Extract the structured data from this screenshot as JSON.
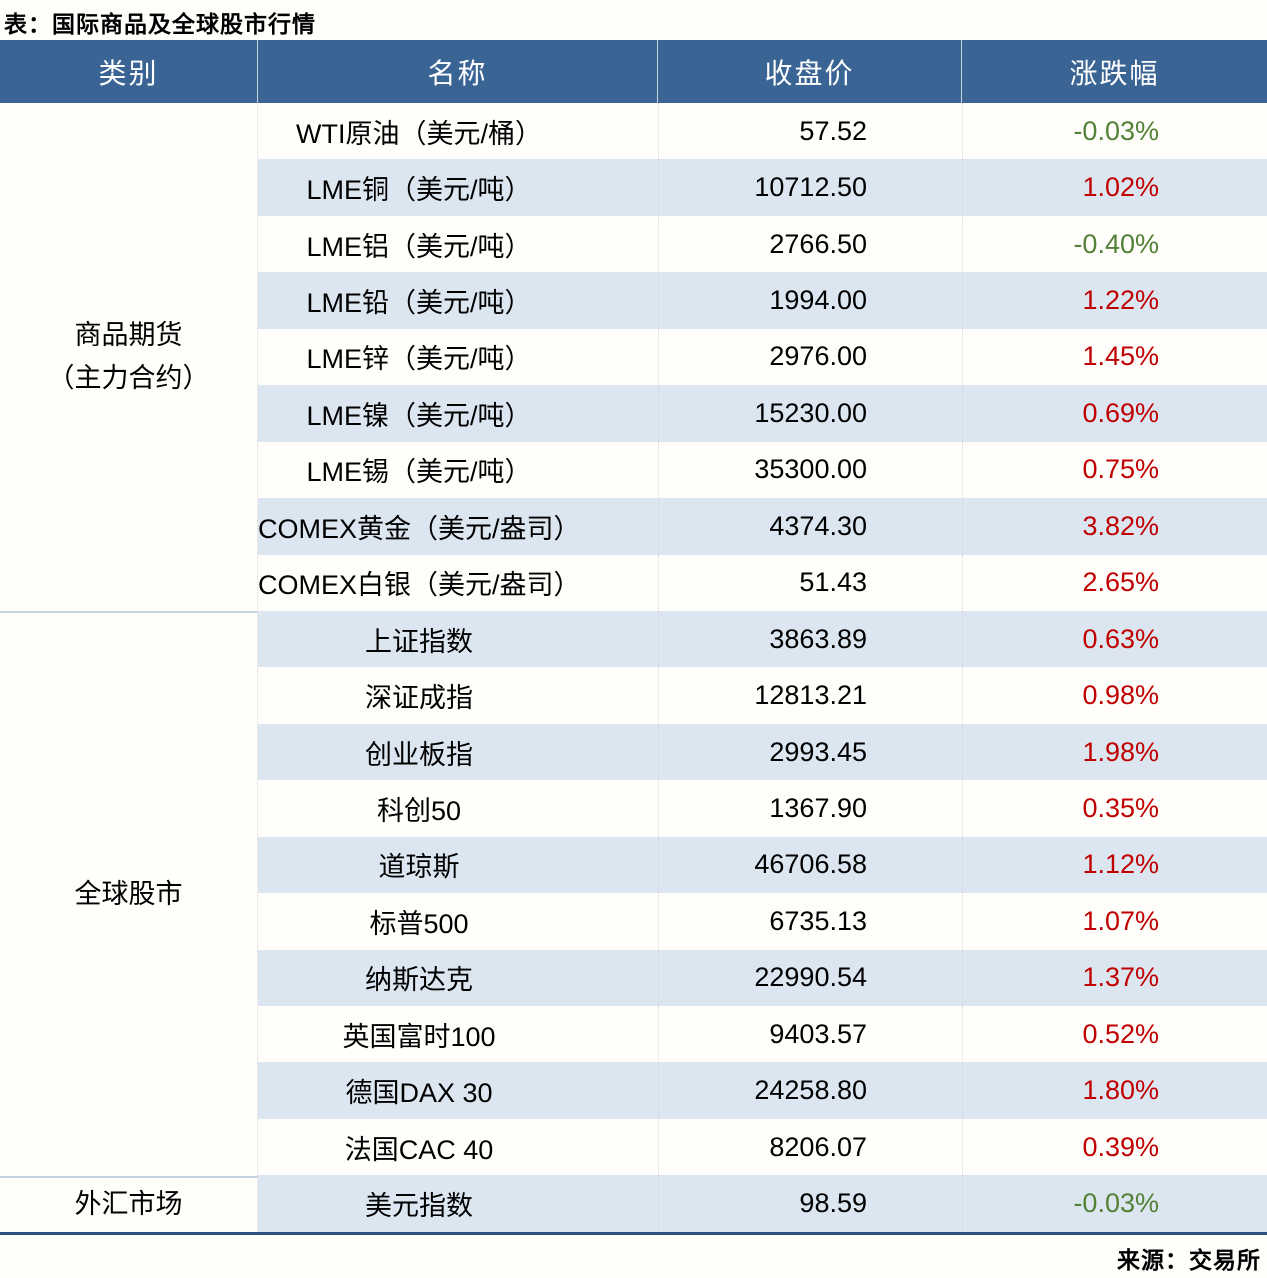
{
  "title": "表：国际商品及全球股市行情",
  "source": "来源：交易所",
  "columns": {
    "category": "类别",
    "name": "名称",
    "close": "收盘价",
    "change": "涨跌幅"
  },
  "colors": {
    "header_bg": "#3A6494",
    "stripe_bg": "#DCE6F1",
    "positive": "#C00000",
    "negative": "#538135",
    "bottom_border": "#2D527E",
    "section_divider": "#C5D3E2"
  },
  "sections": [
    {
      "category_lines": [
        "商品期货",
        "（主力合约）"
      ],
      "rows": [
        {
          "name": "WTI原油（美元/桶）",
          "close": "57.52",
          "change": "-0.03%"
        },
        {
          "name": "LME铜（美元/吨）",
          "close": "10712.50",
          "change": "1.02%"
        },
        {
          "name": "LME铝（美元/吨）",
          "close": "2766.50",
          "change": "-0.40%"
        },
        {
          "name": "LME铅（美元/吨）",
          "close": "1994.00",
          "change": "1.22%"
        },
        {
          "name": "LME锌（美元/吨）",
          "close": "2976.00",
          "change": "1.45%"
        },
        {
          "name": "LME镍（美元/吨）",
          "close": "15230.00",
          "change": "0.69%"
        },
        {
          "name": "LME锡（美元/吨）",
          "close": "35300.00",
          "change": "0.75%"
        },
        {
          "name": "COMEX黄金（美元/盎司）",
          "close": "4374.30",
          "change": "3.82%"
        },
        {
          "name": "COMEX白银（美元/盎司）",
          "close": "51.43",
          "change": "2.65%"
        }
      ]
    },
    {
      "category_lines": [
        "全球股市"
      ],
      "rows": [
        {
          "name": "上证指数",
          "close": "3863.89",
          "change": "0.63%"
        },
        {
          "name": "深证成指",
          "close": "12813.21",
          "change": "0.98%"
        },
        {
          "name": "创业板指",
          "close": "2993.45",
          "change": "1.98%"
        },
        {
          "name": "科创50",
          "close": "1367.90",
          "change": "0.35%"
        },
        {
          "name": "道琼斯",
          "close": "46706.58",
          "change": "1.12%"
        },
        {
          "name": "标普500",
          "close": "6735.13",
          "change": "1.07%"
        },
        {
          "name": "纳斯达克",
          "close": "22990.54",
          "change": "1.37%"
        },
        {
          "name": "英国富时100",
          "close": "9403.57",
          "change": "0.52%"
        },
        {
          "name": "德国DAX 30",
          "close": "24258.80",
          "change": "1.80%"
        },
        {
          "name": "法国CAC 40",
          "close": "8206.07",
          "change": "0.39%"
        }
      ]
    },
    {
      "category_lines": [
        "外汇市场"
      ],
      "rows": [
        {
          "name": "美元指数",
          "close": "98.59",
          "change": "-0.03%"
        }
      ]
    }
  ],
  "chart_data": {
    "type": "table",
    "title": "表：国际商品及全球股市行情",
    "columns": [
      "类别",
      "名称",
      "收盘价",
      "涨跌幅"
    ],
    "rows": [
      [
        "商品期货（主力合约）",
        "WTI原油（美元/桶）",
        57.52,
        "-0.03%"
      ],
      [
        "商品期货（主力合约）",
        "LME铜（美元/吨）",
        10712.5,
        "1.02%"
      ],
      [
        "商品期货（主力合约）",
        "LME铝（美元/吨）",
        2766.5,
        "-0.40%"
      ],
      [
        "商品期货（主力合约）",
        "LME铅（美元/吨）",
        1994.0,
        "1.22%"
      ],
      [
        "商品期货（主力合约）",
        "LME锌（美元/吨）",
        2976.0,
        "1.45%"
      ],
      [
        "商品期货（主力合约）",
        "LME镍（美元/吨）",
        15230.0,
        "0.69%"
      ],
      [
        "商品期货（主力合约）",
        "LME锡（美元/吨）",
        35300.0,
        "0.75%"
      ],
      [
        "商品期货（主力合约）",
        "COMEX黄金（美元/盎司）",
        4374.3,
        "3.82%"
      ],
      [
        "商品期货（主力合约）",
        "COMEX白银（美元/盎司）",
        51.43,
        "2.65%"
      ],
      [
        "全球股市",
        "上证指数",
        3863.89,
        "0.63%"
      ],
      [
        "全球股市",
        "深证成指",
        12813.21,
        "0.98%"
      ],
      [
        "全球股市",
        "创业板指",
        2993.45,
        "1.98%"
      ],
      [
        "全球股市",
        "科创50",
        1367.9,
        "0.35%"
      ],
      [
        "全球股市",
        "道琼斯",
        46706.58,
        "1.12%"
      ],
      [
        "全球股市",
        "标普500",
        6735.13,
        "1.07%"
      ],
      [
        "全球股市",
        "纳斯达克",
        22990.54,
        "1.37%"
      ],
      [
        "全球股市",
        "英国富时100",
        9403.57,
        "0.52%"
      ],
      [
        "全球股市",
        "德国DAX 30",
        24258.8,
        "1.80%"
      ],
      [
        "全球股市",
        "法国CAC 40",
        8206.07,
        "0.39%"
      ],
      [
        "外汇市场",
        "美元指数",
        98.59,
        "-0.03%"
      ]
    ],
    "notes": "positive changes shown in red, negative in green; source: 来源：交易所"
  }
}
